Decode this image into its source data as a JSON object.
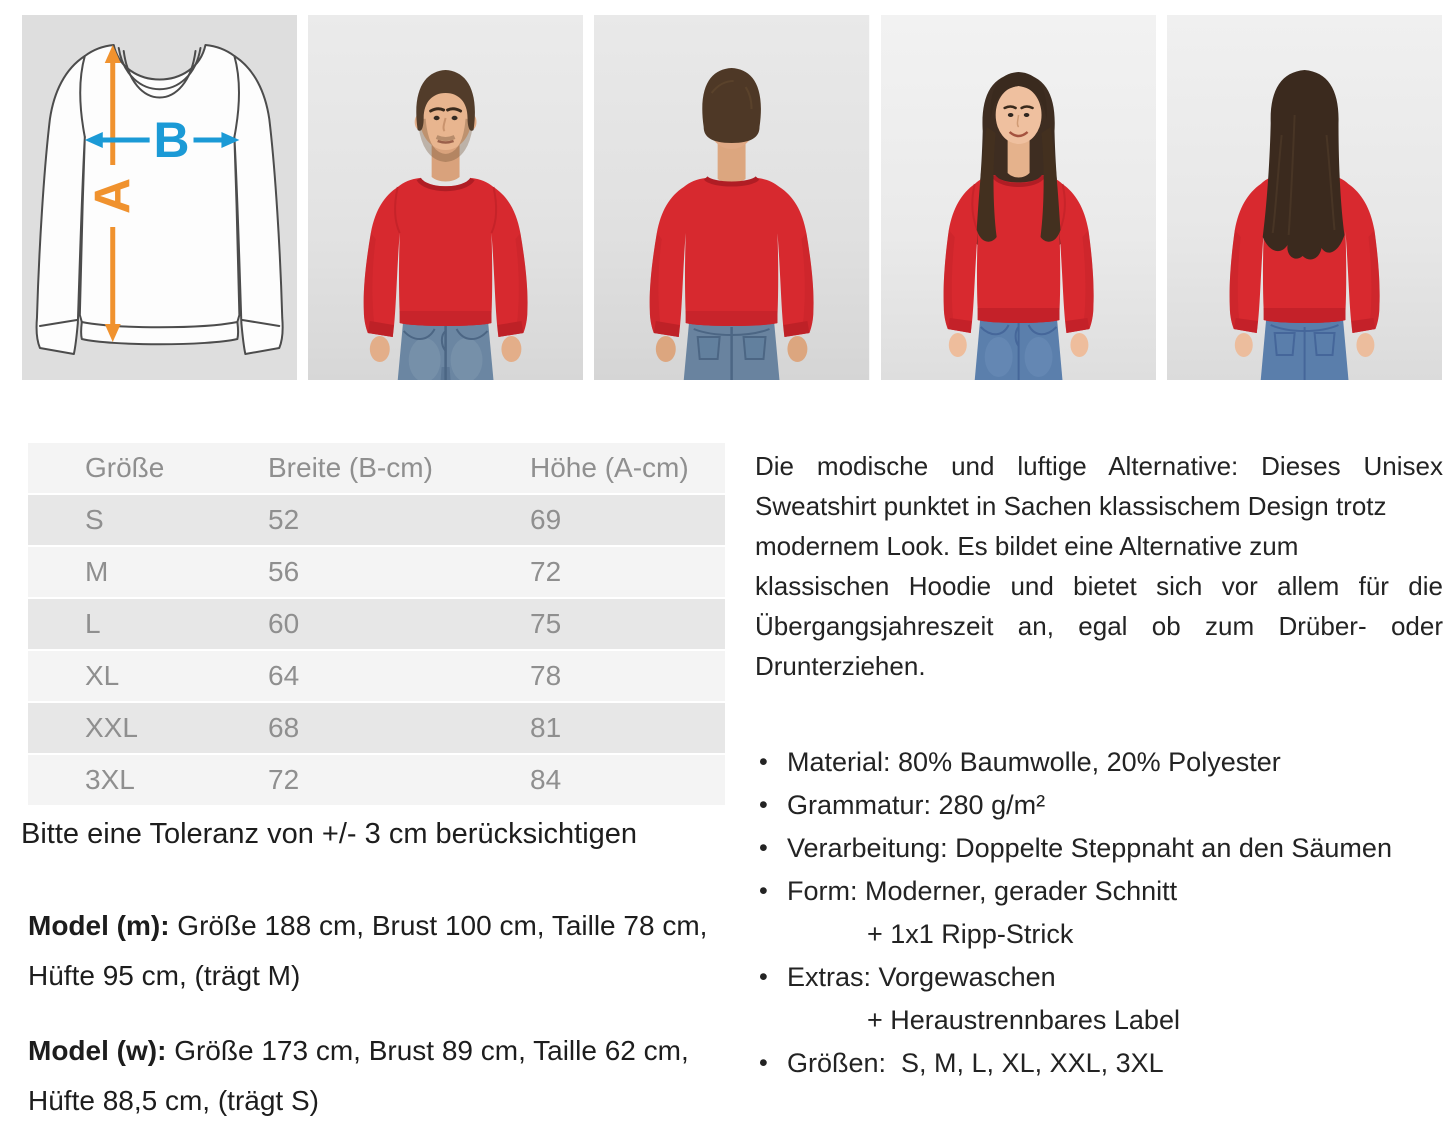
{
  "size_diagram": {
    "height_label": "A",
    "width_label": "B",
    "height_arrow_color": "#f0922e",
    "width_arrow_color": "#1b9ad6"
  },
  "colors": {
    "sweatshirt_red": "#d7292f",
    "table_zebra_dark": "#e7e7e7",
    "table_zebra_light": "#f4f4f4"
  },
  "gallery_icons": [
    {
      "name": "size-diagram"
    },
    {
      "name": "male-model-front-photo"
    },
    {
      "name": "male-model-back-photo"
    },
    {
      "name": "female-model-front-photo"
    },
    {
      "name": "female-model-back-photo"
    }
  ],
  "size_table": {
    "headers": [
      "Größe",
      "Breite (B-cm)",
      "Höhe (A-cm)"
    ],
    "rows": [
      [
        "S",
        "52",
        "69"
      ],
      [
        "M",
        "56",
        "72"
      ],
      [
        "L",
        "60",
        "75"
      ],
      [
        "XL",
        "64",
        "78"
      ],
      [
        "XXL",
        "68",
        "81"
      ],
      [
        "3XL",
        "72",
        "84"
      ]
    ]
  },
  "tolerance_note": "Bitte eine Toleranz von +/- 3 cm berücksichtigen",
  "models": [
    {
      "label": "Model (m):",
      "details": " Größe 188 cm, Brust 100 cm, Taille 78 cm, Hüfte 95 cm, (trägt M)"
    },
    {
      "label": "Model (w):",
      "details": " Größe 173 cm, Brust 89 cm, Taille 62 cm, Hüfte 88,5 cm, (trägt S)"
    }
  ],
  "description_lines": [
    {
      "text": "Die modische und luftige Alternative: Dieses Unisex",
      "stretch": true
    },
    {
      "text": "Sweatshirt punktet in Sachen klassischem Design trotz",
      "stretch": false
    },
    {
      "text": "modernem Look. Es bildet eine Alternative zum",
      "stretch": false
    },
    {
      "text": "klassischen Hoodie und bietet sich vor allem für die",
      "stretch": true
    },
    {
      "text": "Übergangsjahreszeit an, egal ob zum Drüber- oder",
      "stretch": true
    },
    {
      "text": "Drunterziehen.",
      "stretch": false
    }
  ],
  "features": [
    {
      "bullet": true,
      "indent": false,
      "text": "Material: 80% Baumwolle, 20% Polyester"
    },
    {
      "bullet": true,
      "indent": false,
      "text": "Grammatur: 280 g/m²"
    },
    {
      "bullet": true,
      "indent": false,
      "text": "Verarbeitung: Doppelte Steppnaht an den Säumen"
    },
    {
      "bullet": true,
      "indent": false,
      "text": "Form: Moderner, gerader Schnitt"
    },
    {
      "bullet": false,
      "indent": true,
      "text": "+ 1x1 Ripp-Strick"
    },
    {
      "bullet": true,
      "indent": false,
      "text": "Extras: Vorgewaschen"
    },
    {
      "bullet": false,
      "indent": true,
      "text": "+ Heraustrennbares Label"
    },
    {
      "bullet": true,
      "indent": false,
      "text": "Größen:  S, M, L, XL, XXL, 3XL"
    }
  ]
}
